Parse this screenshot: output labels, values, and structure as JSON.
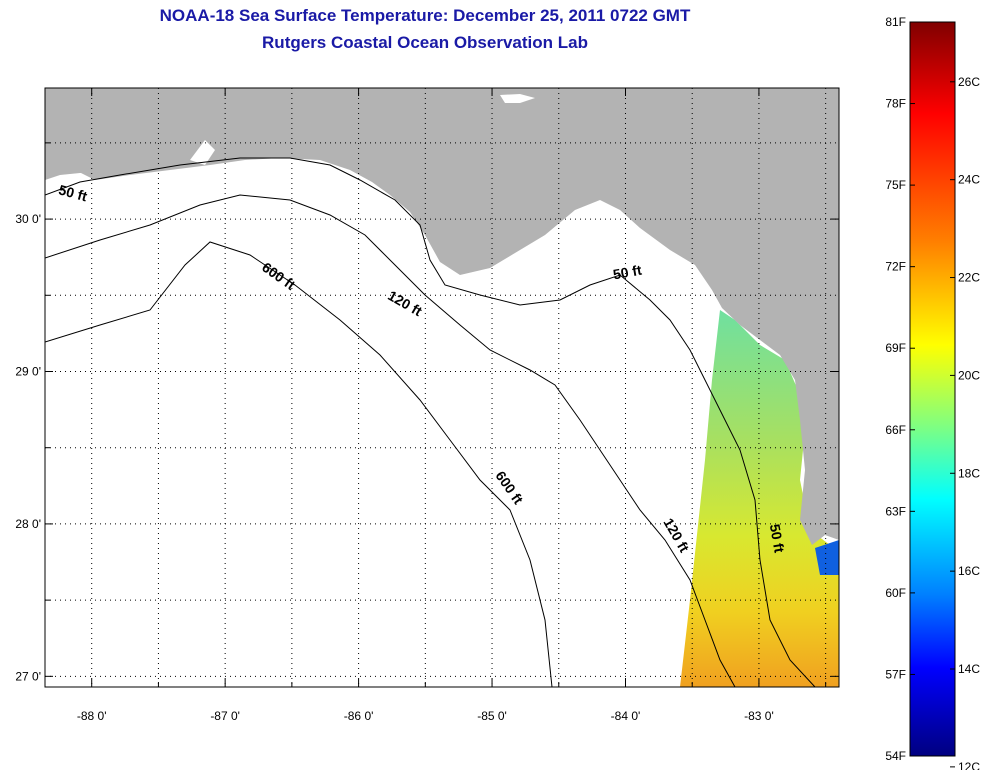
{
  "header": {
    "title": "NOAA-18 Sea Surface Temperature:  December 25, 2011 0722 GMT",
    "subtitle": "Rutgers Coastal Ocean Observation Lab"
  },
  "map": {
    "lon_range": [
      -88.35,
      -82.4
    ],
    "lat_range": [
      26.93,
      30.86
    ],
    "lon_ticks": [
      {
        "value": -88,
        "label": "-88 0'"
      },
      {
        "value": -87,
        "label": "-87 0'"
      },
      {
        "value": -86,
        "label": "-86 0'"
      },
      {
        "value": -85,
        "label": "-85 0'"
      },
      {
        "value": -84,
        "label": "-84 0'"
      },
      {
        "value": -83,
        "label": "-83 0'"
      }
    ],
    "lat_ticks": [
      {
        "value": 30,
        "label": "30 0'"
      },
      {
        "value": 29,
        "label": "29 0'"
      },
      {
        "value": 28,
        "label": "28 0'"
      },
      {
        "value": 27,
        "label": "27 0'"
      }
    ],
    "grid": "dotted",
    "land_color": "#b3b3b3",
    "ocean_color": "#ffffff",
    "contours": [
      {
        "label": "50 ft",
        "lon": -88.15,
        "lat": 30.14,
        "rotate": 15
      },
      {
        "label": "600 ft",
        "lon": -86.62,
        "lat": 29.6,
        "rotate": 35
      },
      {
        "label": "120 ft",
        "lon": -85.67,
        "lat": 29.42,
        "rotate": 30
      },
      {
        "label": "50 ft",
        "lon": -83.98,
        "lat": 29.62,
        "rotate": -10
      },
      {
        "label": "600 ft",
        "lon": -84.9,
        "lat": 28.22,
        "rotate": 55
      },
      {
        "label": "120 ft",
        "lon": -83.65,
        "lat": 27.91,
        "rotate": 60
      },
      {
        "label": "50 ft",
        "lon": -82.9,
        "lat": 27.9,
        "rotate": 80
      }
    ]
  },
  "colorbar": {
    "fahrenheit_labels": [
      "81F",
      "78F",
      "75F",
      "72F",
      "69F",
      "66F",
      "63F",
      "60F",
      "57F",
      "54F"
    ],
    "celsius_labels": [
      "26C",
      "24C",
      "22C",
      "20C",
      "18C",
      "16C",
      "14C",
      "12C"
    ],
    "colors": [
      "#800000",
      "#ff0000",
      "#ff8000",
      "#ffff00",
      "#80ff80",
      "#00ffff",
      "#0080ff",
      "#0000ff",
      "#000080"
    ]
  }
}
